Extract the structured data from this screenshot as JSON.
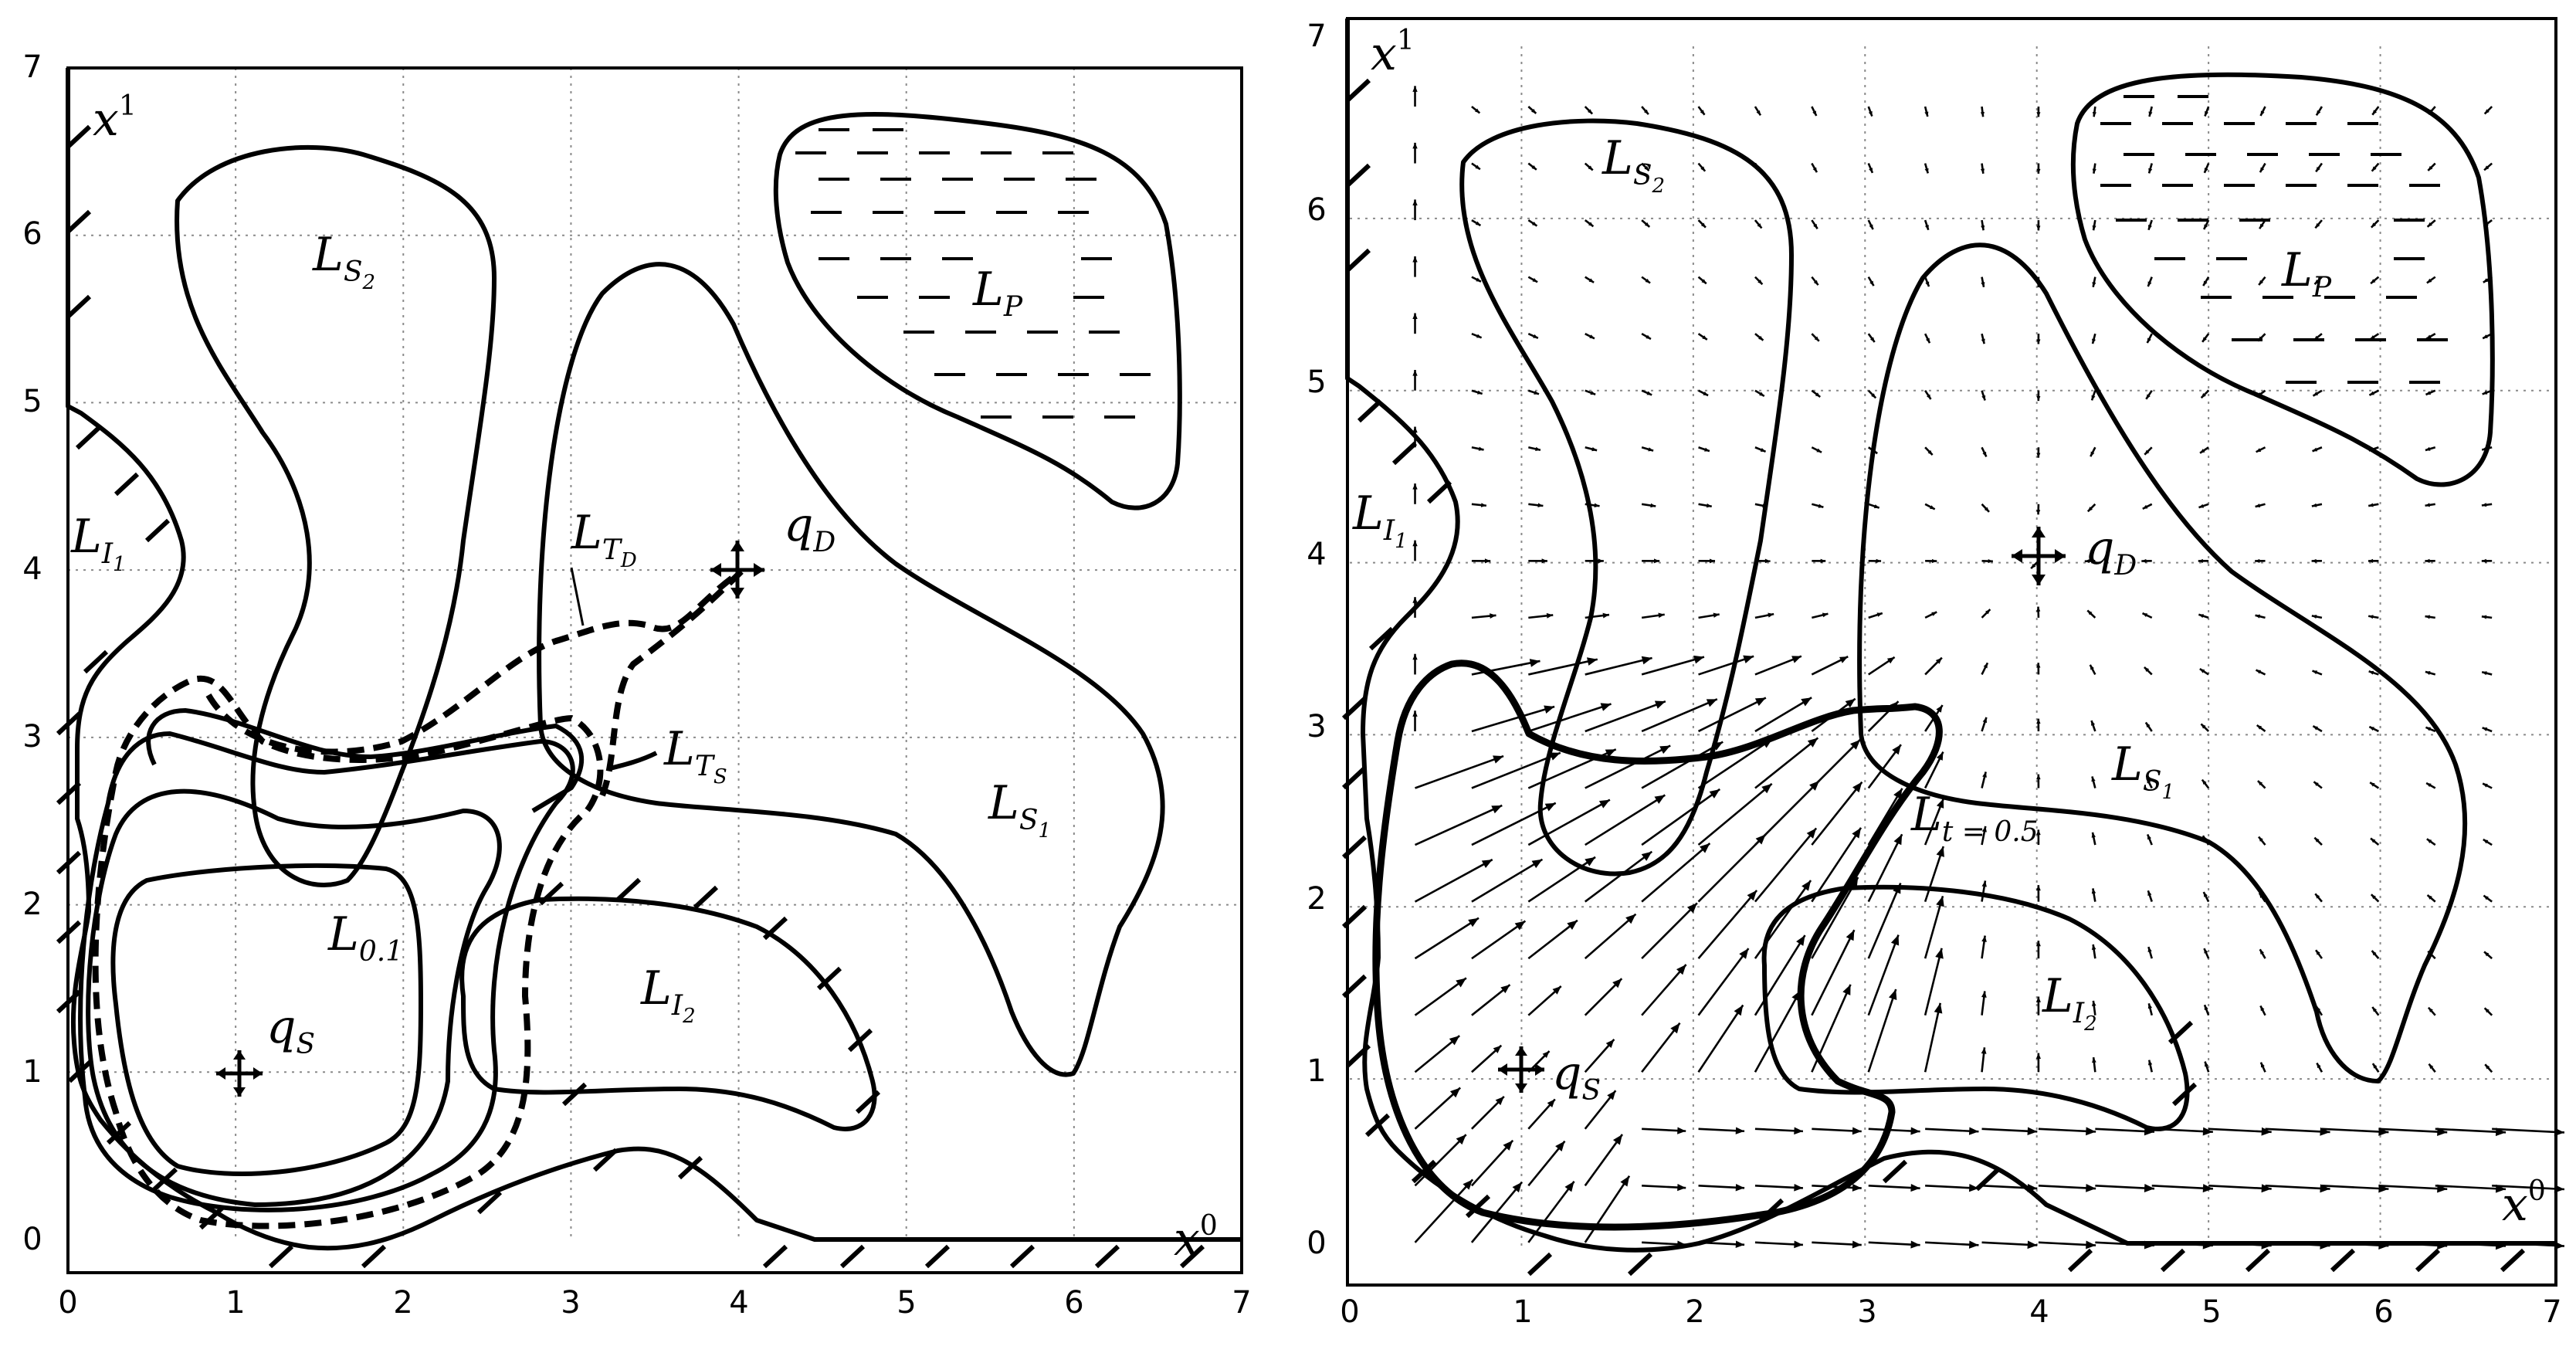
{
  "panels": [
    {
      "id": "left",
      "axis": {
        "x_ticks": [
          "0",
          "1",
          "2",
          "3",
          "4",
          "5",
          "6",
          "7"
        ],
        "y_ticks": [
          "0",
          "1",
          "2",
          "3",
          "4",
          "5",
          "6",
          "7"
        ],
        "x_label": "x",
        "x_label_sup": "0",
        "y_label": "x",
        "y_label_sup": "1"
      },
      "labels": {
        "LS2": {
          "main": "L",
          "sub": "S",
          "subsub": "2"
        },
        "LS1": {
          "main": "L",
          "sub": "S",
          "subsub": "1"
        },
        "LP": {
          "main": "L",
          "sub": "P"
        },
        "LI1": {
          "main": "L",
          "sub": "I",
          "subsub": "1"
        },
        "LI2": {
          "main": "L",
          "sub": "I",
          "subsub": "2"
        },
        "LTD": {
          "main": "L",
          "sub": "T",
          "subsub": "D"
        },
        "LTS": {
          "main": "L",
          "sub": "T",
          "subsub": "S"
        },
        "L01": {
          "main": "L",
          "sub": "0.1"
        },
        "qS": {
          "main": "q",
          "sub": "S"
        },
        "qD": {
          "main": "q",
          "sub": "D"
        }
      }
    },
    {
      "id": "right",
      "axis": {
        "x_ticks": [
          "0",
          "1",
          "2",
          "3",
          "4",
          "5",
          "6",
          "7"
        ],
        "y_ticks": [
          "0",
          "1",
          "2",
          "3",
          "4",
          "5",
          "6",
          "7"
        ],
        "x_label": "x",
        "x_label_sup": "0",
        "y_label": "x",
        "y_label_sup": "1"
      },
      "labels": {
        "LS2": {
          "main": "L",
          "sub": "S",
          "subsub": "2"
        },
        "LS1": {
          "main": "L",
          "sub": "S",
          "subsub": "1"
        },
        "LP": {
          "main": "L",
          "sub": "P"
        },
        "LI1": {
          "main": "L",
          "sub": "I",
          "subsub": "1"
        },
        "LI2": {
          "main": "L",
          "sub": "I",
          "subsub": "2"
        },
        "Lt": {
          "main": "L",
          "sub": "t = 0.5"
        },
        "qS": {
          "main": "q",
          "sub": "S"
        },
        "qD": {
          "main": "q",
          "sub": "D"
        }
      }
    }
  ]
}
